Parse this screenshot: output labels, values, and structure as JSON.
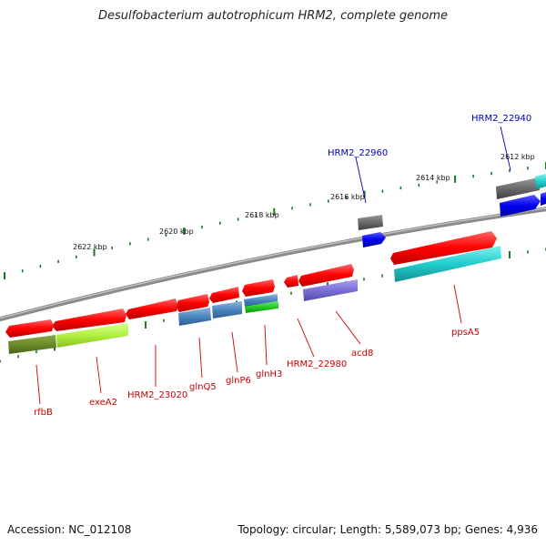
{
  "title": "Desulfobacterium autotrophicum HRM2, complete genome",
  "footer": {
    "accession": "Accession: NC_012108",
    "topology": "Topology: circular; Length: 5,589,073 bp; Genes: 4,936"
  },
  "colors": {
    "backbone": "#8a8a8a",
    "forward_gene": "#ff0000",
    "reverse_gene": "#0000ee",
    "label_red": "#cc0000",
    "label_blue": "#0000bb",
    "tick": "#1b7a1b"
  },
  "kbp_ticks": [
    {
      "label": "2622 kbp"
    },
    {
      "label": "2620 kbp"
    },
    {
      "label": "2618 kbp"
    },
    {
      "label": "2616 kbp"
    },
    {
      "label": "2614 kbp"
    },
    {
      "label": "2612 kbp"
    }
  ],
  "gene_labels": [
    {
      "text": "HRM2_22940",
      "color": "#0000bb"
    },
    {
      "text": "HRM2_22960",
      "color": "#0000bb"
    },
    {
      "text": "rfbB",
      "color": "#cc0000"
    },
    {
      "text": "exeA2",
      "color": "#cc0000"
    },
    {
      "text": "HRM2_23020",
      "color": "#cc0000"
    },
    {
      "text": "glnQ5",
      "color": "#cc0000"
    },
    {
      "text": "glnP6",
      "color": "#cc0000"
    },
    {
      "text": "glnH3",
      "color": "#cc0000"
    },
    {
      "text": "HRM2_22980",
      "color": "#cc0000"
    },
    {
      "text": "acd8",
      "color": "#cc0000"
    },
    {
      "text": "ppsA5",
      "color": "#cc0000"
    }
  ]
}
